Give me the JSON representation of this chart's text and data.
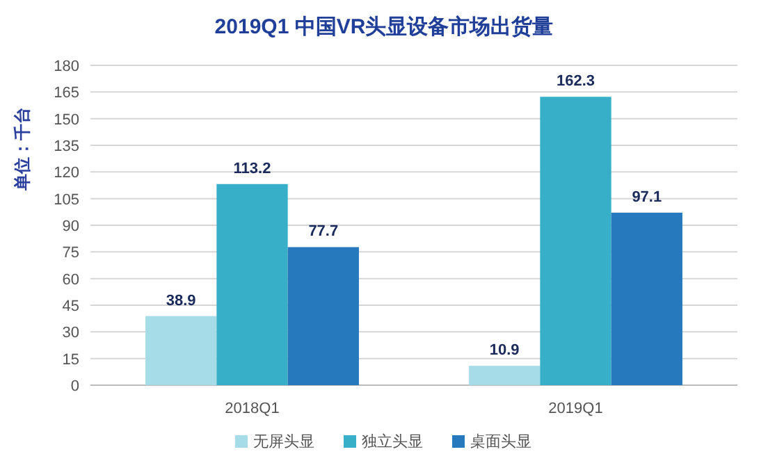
{
  "chart_data": {
    "type": "bar",
    "title": "2019Q1 中国VR头显设备市场出货量",
    "ylabel": "单位：千台",
    "categories": [
      "2018Q1",
      "2019Q1"
    ],
    "series": [
      {
        "name": "无屏头显",
        "color": "#a6dbe8",
        "values": [
          38.9,
          10.9
        ]
      },
      {
        "name": "独立头显",
        "color": "#37afc8",
        "values": [
          113.2,
          162.3
        ]
      },
      {
        "name": "桌面头显",
        "color": "#2779bd",
        "values": [
          77.7,
          97.1
        ]
      }
    ],
    "ylim": [
      0,
      180
    ],
    "yticks": [
      0,
      15,
      30,
      45,
      60,
      75,
      90,
      105,
      120,
      135,
      150,
      165,
      180
    ],
    "grid": "y",
    "legend": "bottom",
    "data_labels": true
  }
}
